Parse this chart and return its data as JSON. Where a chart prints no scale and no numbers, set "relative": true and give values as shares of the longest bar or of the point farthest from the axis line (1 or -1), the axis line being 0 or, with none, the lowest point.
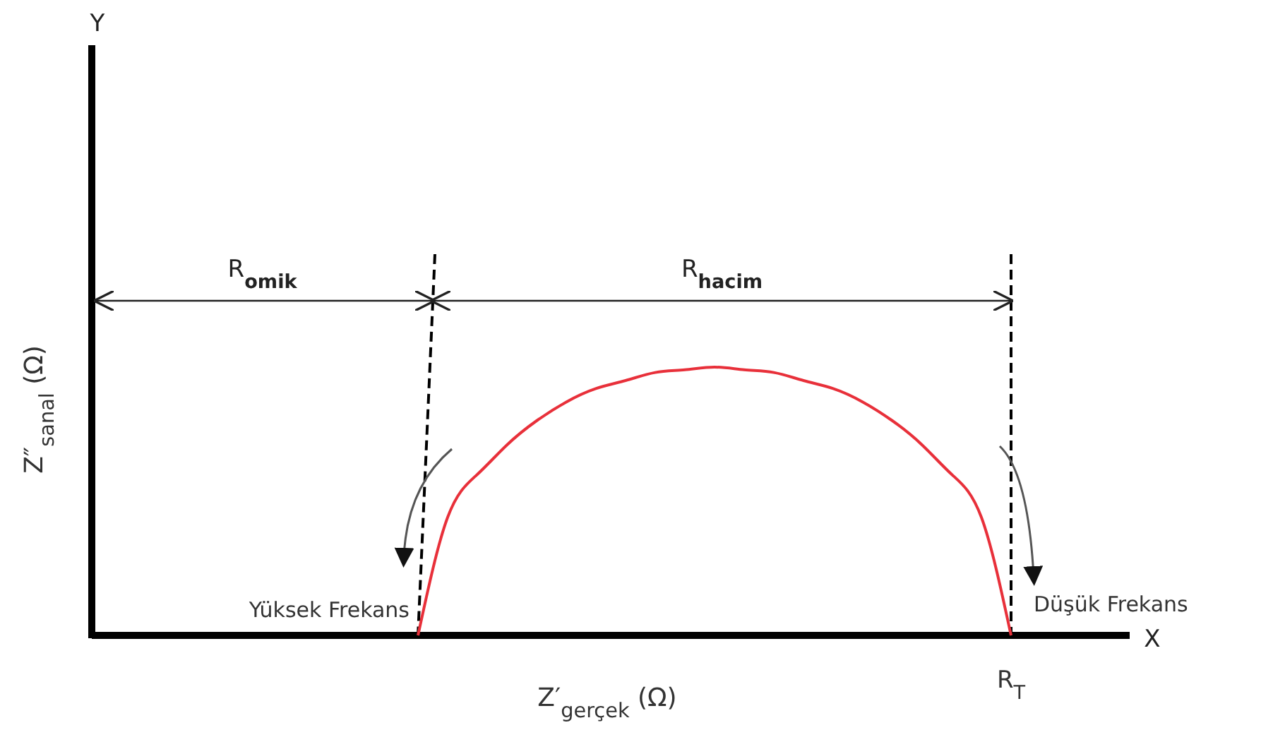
{
  "chart_data": {
    "type": "line",
    "relative": true,
    "xlabel": "Z′$_{gerçek}$ (Ω)",
    "ylabel": "Z″$_{sanal}$ (Ω)",
    "categories": [
      null,
      null,
      null,
      null,
      null,
      null,
      null,
      null,
      null,
      null,
      null,
      null,
      null,
      null,
      null,
      null,
      null,
      null,
      null,
      null,
      null,
      null,
      null,
      null,
      null,
      null,
      null,
      null,
      null,
      null,
      null,
      null,
      null,
      null,
      null,
      null
    ],
    "series": [
      {
        "color": "#e8303a",
        "values": [
          null,
          null,
          null,
          null,
          null,
          null,
          null,
          null,
          null,
          null,
          null,
          0,
          0.44,
          0.6,
          0.71,
          0.8,
          0.87,
          0.92,
          0.95,
          0.98,
          0.99,
          1,
          0.99,
          0.98,
          0.95,
          0.92,
          0.87,
          0.8,
          0.71,
          0.6,
          0.44,
          0,
          null,
          null,
          null,
          null
        ]
      }
    ],
    "annotations": [
      "R$_{omik}$",
      "R$_{hacim}$",
      "Yüksek Frekans",
      "Düşük Frekans",
      "R$_{T}$",
      "X",
      "Y"
    ],
    "line_style": "solid"
  }
}
